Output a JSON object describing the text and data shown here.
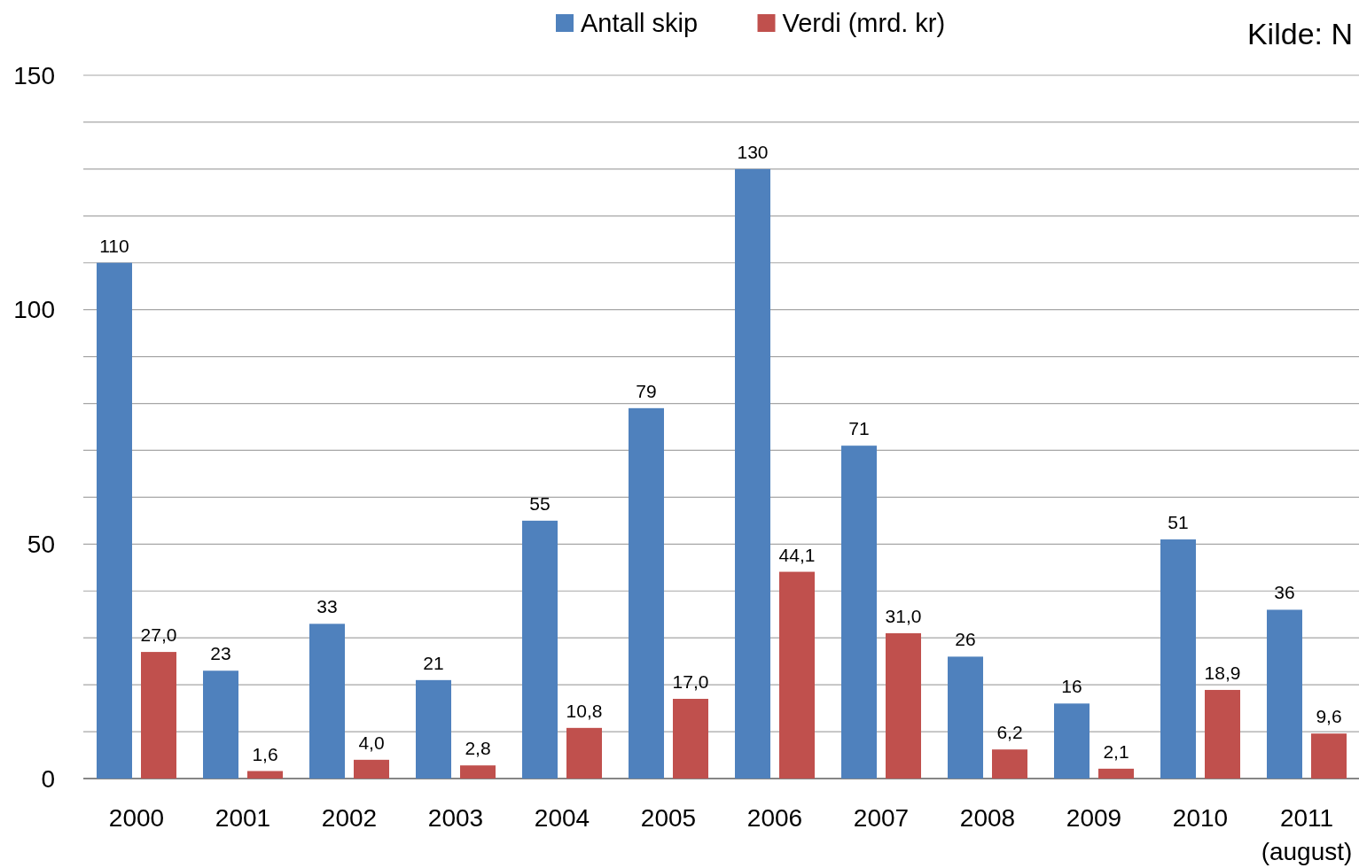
{
  "chart_data": {
    "type": "bar",
    "categories": [
      "2000",
      "2001",
      "2002",
      "2003",
      "2004",
      "2005",
      "2006",
      "2007",
      "2008",
      "2009",
      "2010",
      "2011\n(august)"
    ],
    "series": [
      {
        "name": "Antall skip",
        "color": "#4f81bd",
        "values": [
          110,
          23,
          33,
          21,
          55,
          79,
          130,
          71,
          26,
          16,
          51,
          36
        ],
        "value_labels": [
          "110",
          "23",
          "33",
          "21",
          "55",
          "79",
          "130",
          "71",
          "26",
          "16",
          "51",
          "36"
        ]
      },
      {
        "name": "Verdi (mrd. kr)",
        "color": "#c0504d",
        "values": [
          27.0,
          1.6,
          4.0,
          2.8,
          10.8,
          17.0,
          44.1,
          31.0,
          6.2,
          2.1,
          18.9,
          9.6
        ],
        "value_labels": [
          "27,0",
          "1,6",
          "4,0",
          "2,8",
          "10,8",
          "17,0",
          "44,1",
          "31,0",
          "6,2",
          "2,1",
          "18,9",
          "9,6"
        ]
      }
    ],
    "ylim": [
      0,
      150
    ],
    "yticks": [
      0,
      {
        "value": 10,
        "label": null
      },
      {
        "value": 20,
        "label": null
      },
      {
        "value": 30,
        "label": null
      },
      {
        "value": 40,
        "label": null
      },
      50,
      {
        "value": 60,
        "label": null
      },
      {
        "value": 70,
        "label": null
      },
      {
        "value": 80,
        "label": null
      },
      {
        "value": 90,
        "label": null
      },
      100,
      {
        "value": 110,
        "label": null
      },
      {
        "value": 120,
        "label": null
      },
      {
        "value": 130,
        "label": null
      },
      {
        "value": 140,
        "label": null
      },
      150
    ],
    "grid": true,
    "legend": "top",
    "annotations": [
      "Kilde: N"
    ]
  }
}
